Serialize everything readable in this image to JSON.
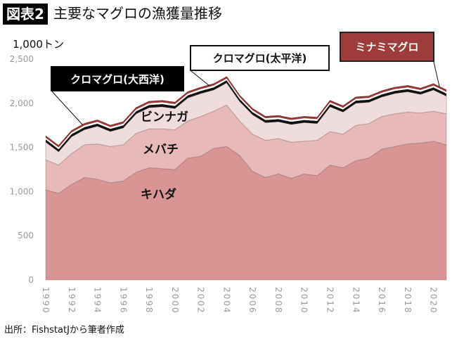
{
  "header": {
    "tag": "図表2",
    "title": "主要なマグロの漁獲量推移"
  },
  "footer": {
    "source": "出所：FishstatJから筆者作成"
  },
  "chart_data": {
    "type": "area",
    "stacked": true,
    "title": "主要なマグロの漁獲量推移",
    "ylabel": "1,000トン",
    "xlabel": "",
    "ylim": [
      0,
      2500
    ],
    "yticks": [
      0,
      500,
      1000,
      1500,
      2000,
      2500
    ],
    "ytick_labels": [
      "0",
      "500",
      "1,000",
      "1,500",
      "2,000",
      "2,500"
    ],
    "xtick_labels": [
      "1990",
      "1992",
      "1994",
      "1996",
      "1998",
      "2000",
      "2002",
      "2004",
      "2006",
      "2008",
      "2010",
      "2012",
      "2014",
      "2016",
      "2018",
      "2020"
    ],
    "grid": false,
    "x": [
      1990,
      1991,
      1992,
      1993,
      1994,
      1995,
      1996,
      1997,
      1998,
      1999,
      2000,
      2001,
      2002,
      2003,
      2004,
      2005,
      2006,
      2007,
      2008,
      2009,
      2010,
      2011,
      2012,
      2013,
      2014,
      2015,
      2016,
      2017,
      2018,
      2019,
      2020,
      2021
    ],
    "series": [
      {
        "name": "キハダ",
        "color": "#d99494",
        "values": [
          1020,
          980,
          1080,
          1160,
          1140,
          1100,
          1120,
          1220,
          1270,
          1260,
          1250,
          1380,
          1400,
          1490,
          1510,
          1410,
          1230,
          1160,
          1200,
          1150,
          1200,
          1180,
          1300,
          1270,
          1350,
          1380,
          1480,
          1510,
          1540,
          1550,
          1570,
          1530
        ]
      },
      {
        "name": "メバチ",
        "color": "#e8b9b9",
        "values": [
          340,
          320,
          350,
          370,
          400,
          410,
          410,
          440,
          440,
          450,
          450,
          420,
          450,
          420,
          470,
          390,
          420,
          420,
          400,
          410,
          370,
          400,
          380,
          380,
          400,
          390,
          370,
          370,
          360,
          340,
          340,
          350
        ]
      },
      {
        "name": "ビンナガ",
        "color": "#efdcdc",
        "values": [
          200,
          150,
          190,
          170,
          200,
          170,
          190,
          220,
          240,
          250,
          240,
          260,
          260,
          240,
          250,
          220,
          220,
          200,
          190,
          200,
          210,
          190,
          280,
          250,
          250,
          240,
          220,
          230,
          230,
          210,
          240,
          200
        ]
      },
      {
        "name": "クロマグロ(大西洋)",
        "color": "#111111",
        "values": [
          30,
          30,
          30,
          30,
          30,
          30,
          30,
          30,
          30,
          30,
          30,
          30,
          30,
          30,
          30,
          30,
          30,
          30,
          30,
          30,
          30,
          30,
          30,
          30,
          30,
          30,
          30,
          30,
          30,
          30,
          30,
          30
        ]
      },
      {
        "name": "クロマグロ(太平洋)",
        "color": "#ffffff",
        "values": [
          20,
          20,
          20,
          20,
          20,
          20,
          20,
          20,
          20,
          20,
          20,
          20,
          20,
          20,
          20,
          20,
          20,
          20,
          20,
          20,
          20,
          20,
          20,
          20,
          20,
          20,
          20,
          20,
          20,
          20,
          20,
          20
        ]
      },
      {
        "name": "ミナミマグロ",
        "color": "#9e3b3b",
        "values": [
          20,
          20,
          20,
          20,
          20,
          20,
          20,
          20,
          20,
          20,
          20,
          20,
          20,
          20,
          20,
          20,
          20,
          20,
          20,
          20,
          20,
          20,
          20,
          20,
          20,
          20,
          20,
          20,
          20,
          20,
          20,
          20
        ]
      }
    ],
    "annotations": [
      "クロマグロ(大西洋)",
      "クロマグロ(太平洋)",
      "ミナミマグロ",
      "ビンナガ",
      "メバチ",
      "キハダ"
    ]
  }
}
